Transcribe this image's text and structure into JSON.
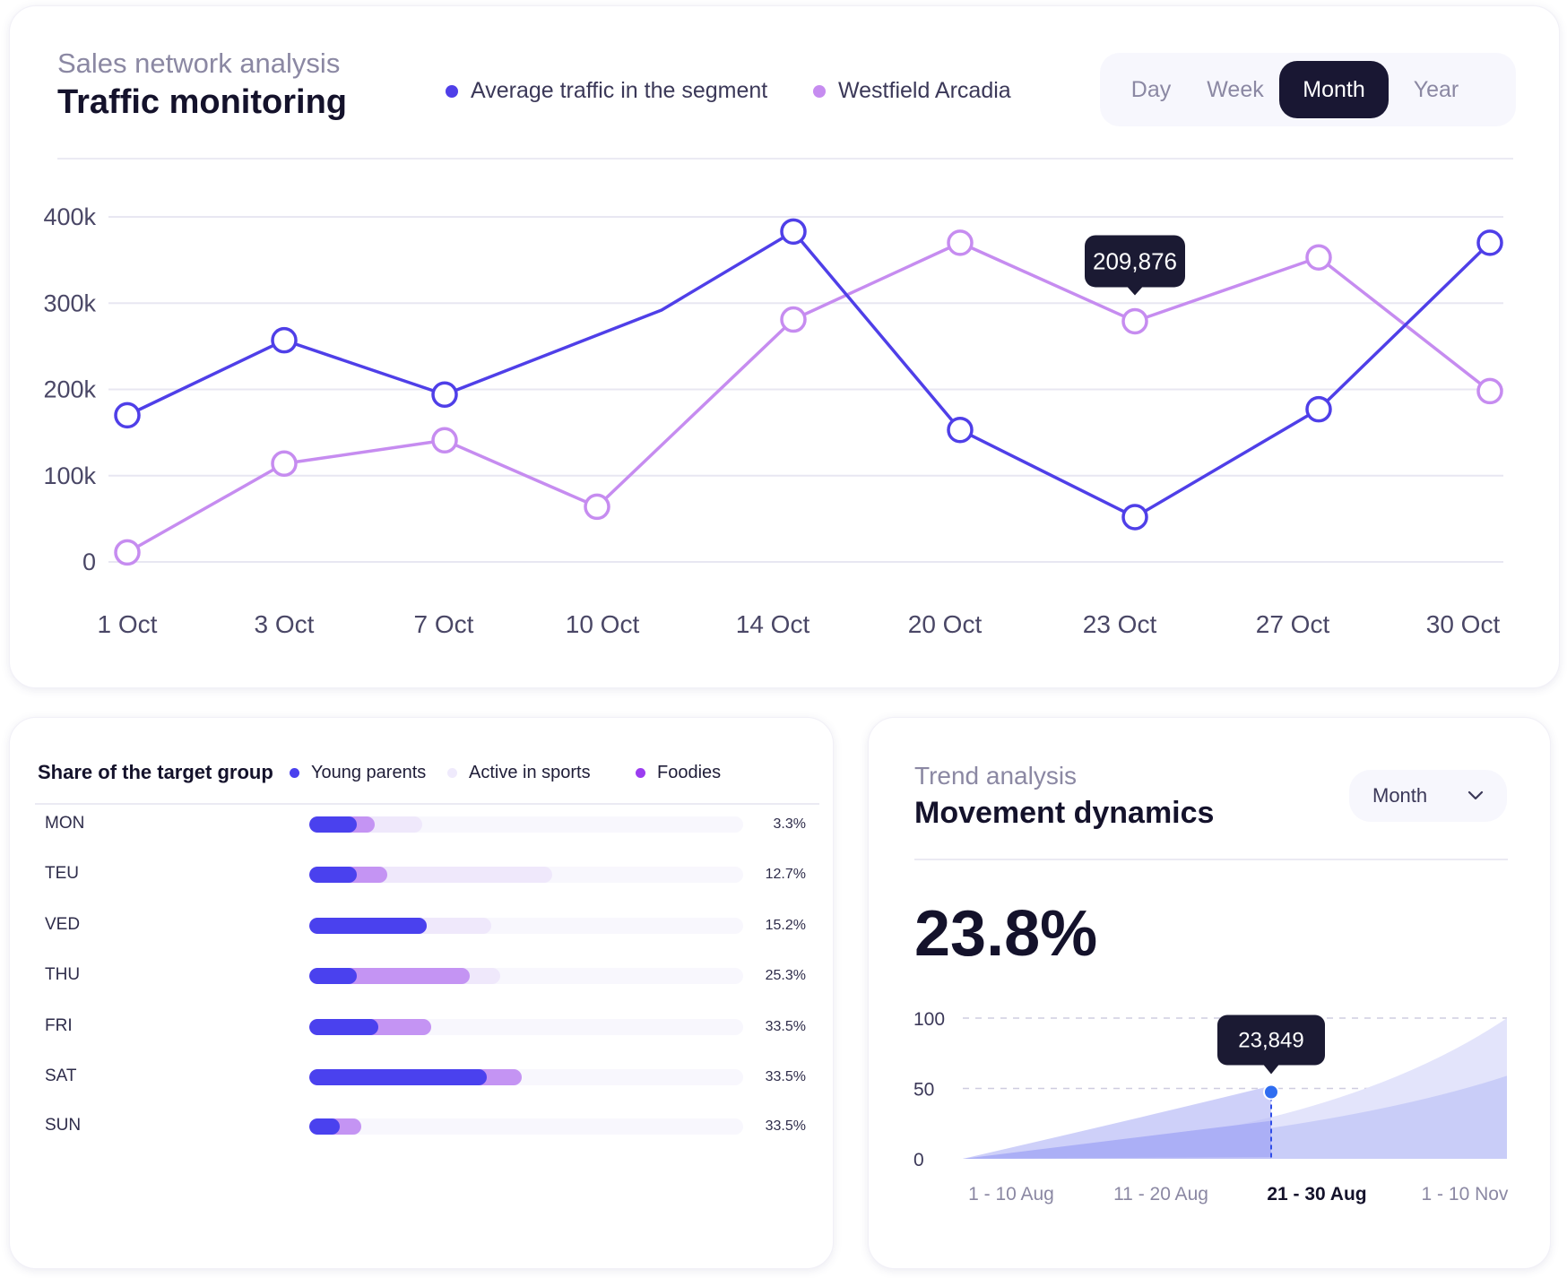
{
  "traffic": {
    "subtitle": "Sales network analysis",
    "title": "Traffic monitoring",
    "legend": [
      {
        "label": "Average traffic in the segment",
        "color": "#4f3fe8"
      },
      {
        "label": "Westfield Arcadia",
        "color": "#c68cf0"
      }
    ],
    "periods": [
      "Day",
      "Week",
      "Month",
      "Year"
    ],
    "active_period": "Month",
    "tooltip": "209,876"
  },
  "chart_data": [
    {
      "type": "line",
      "x": [
        "1 Oct",
        "3 Oct",
        "7 Oct",
        "10 Oct",
        "14 Oct",
        "20 Oct",
        "23 Oct",
        "27 Oct",
        "30 Oct"
      ],
      "ylim": [
        0,
        400000
      ],
      "y_ticks": [
        "0",
        "100k",
        "200k",
        "300k",
        "400k"
      ],
      "grid": true,
      "legend_position": "top",
      "series": [
        {
          "name": "Average traffic in the segment",
          "color": "#4f3fe8",
          "x_pos": [
            0,
            1,
            2,
            3,
            4,
            5,
            6,
            7,
            8
          ],
          "values": [
            170000,
            257000,
            194000,
            null,
            383000,
            153000,
            52000,
            177000,
            370000
          ]
        },
        {
          "name": "Westfield Arcadia",
          "color": "#c68cf0",
          "x_pos": [
            0,
            1,
            2,
            3,
            4,
            5,
            6,
            7,
            8
          ],
          "values": [
            11000,
            114000,
            141000,
            64000,
            281000,
            370000,
            279000,
            353000,
            198000
          ]
        }
      ]
    },
    {
      "type": "area",
      "x": [
        "1 - 10 Aug",
        "11 - 20 Aug",
        "21 - 30 Aug",
        "1 - 10 Nov"
      ],
      "ylim": [
        0,
        100
      ],
      "y_ticks": [
        "0",
        "50",
        "100"
      ],
      "highlight_x": "21 - 30 Aug",
      "highlight_value": 50,
      "tooltip": "23,849",
      "series": [
        {
          "upper_end": 100,
          "color": "#e3e4fb"
        },
        {
          "upper_end": 59,
          "color": "#c9cdf8"
        },
        {
          "upper_end": 27,
          "color": "#8a8ff3"
        }
      ]
    }
  ],
  "share": {
    "title": "Share of the target group",
    "legend": [
      {
        "label": "Young parents",
        "color": "#4a41ee"
      },
      {
        "label": "Active in sports",
        "color": "#efeafc"
      },
      {
        "label": "Foodies",
        "color": "#9b3df0"
      }
    ],
    "rows": [
      {
        "day": "MON",
        "pct": "3.3%",
        "blue": 11,
        "purple": 4,
        "light": 11
      },
      {
        "day": "TEU",
        "pct": "12.7%",
        "blue": 11,
        "purple": 7,
        "light": 38
      },
      {
        "day": "VED",
        "pct": "15.2%",
        "blue": 27,
        "purple": 0,
        "light": 15
      },
      {
        "day": "THU",
        "pct": "25.3%",
        "blue": 11,
        "purple": 26,
        "light": 7
      },
      {
        "day": "FRI",
        "pct": "33.5%",
        "blue": 16,
        "purple": 12,
        "light": 0
      },
      {
        "day": "SAT",
        "pct": "33.5%",
        "blue": 41,
        "purple": 8,
        "light": 0
      },
      {
        "day": "SUN",
        "pct": "33.5%",
        "blue": 7,
        "purple": 5,
        "light": 0
      }
    ]
  },
  "trend": {
    "subtitle": "Trend analysis",
    "title": "Movement dynamics",
    "dropdown": "Month",
    "big_value": "23.8%"
  }
}
